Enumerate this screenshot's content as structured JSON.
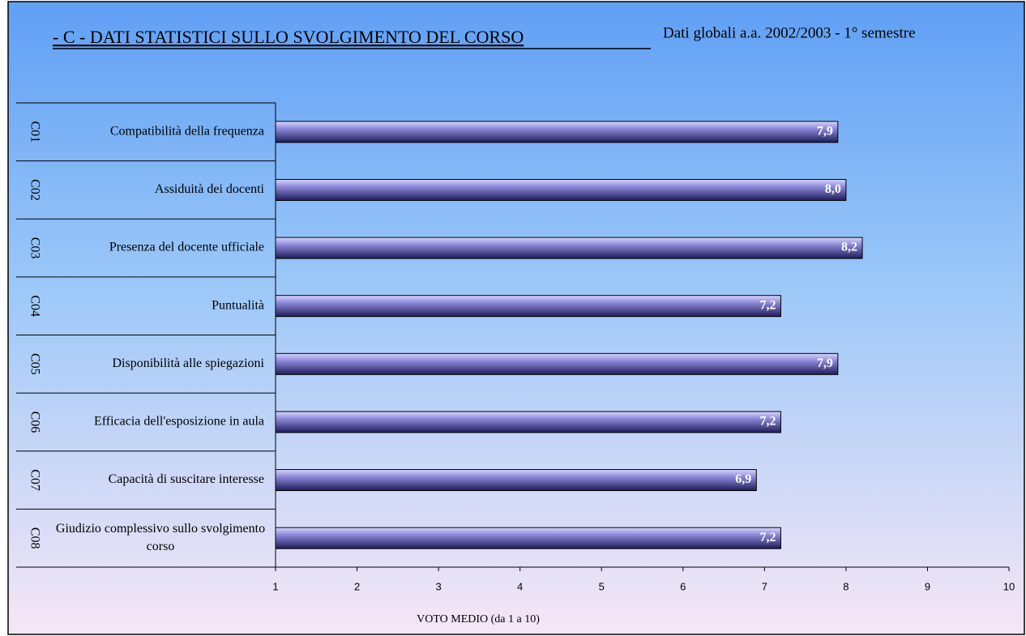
{
  "chart_data": {
    "type": "hbar",
    "title": "- C -  DATI STATISTICI SULLO SVOLGIMENTO DEL CORSO",
    "subtitle": "Dati globali a.a. 2002/2003 - 1° semestre",
    "x_label": "VOTO MEDIO (da 1 a 10)",
    "codes": [
      "C01",
      "C02",
      "C03",
      "C04",
      "C05",
      "C06",
      "C07",
      "C08"
    ],
    "categories": [
      "Compatibilità della frequenza",
      "Assiduità dei docenti",
      "Presenza del docente ufficiale",
      "Puntualità",
      "Disponibilità alle spiegazioni",
      "Efficacia dell'esposizione in aula",
      "Capacità di suscitare interesse",
      "Giudizio complessivo sullo svolgimento corso"
    ],
    "values": [
      7.9,
      8.0,
      8.2,
      7.2,
      7.9,
      7.2,
      6.9,
      7.2
    ],
    "value_labels": [
      "7,9",
      "8,0",
      "8,2",
      "7,2",
      "7,9",
      "7,2",
      "6,9",
      "7,2"
    ],
    "xlim": [
      1,
      10
    ],
    "xticks": [
      1,
      2,
      3,
      4,
      5,
      6,
      7,
      8,
      9,
      10
    ],
    "color": "#5a5aa8"
  }
}
